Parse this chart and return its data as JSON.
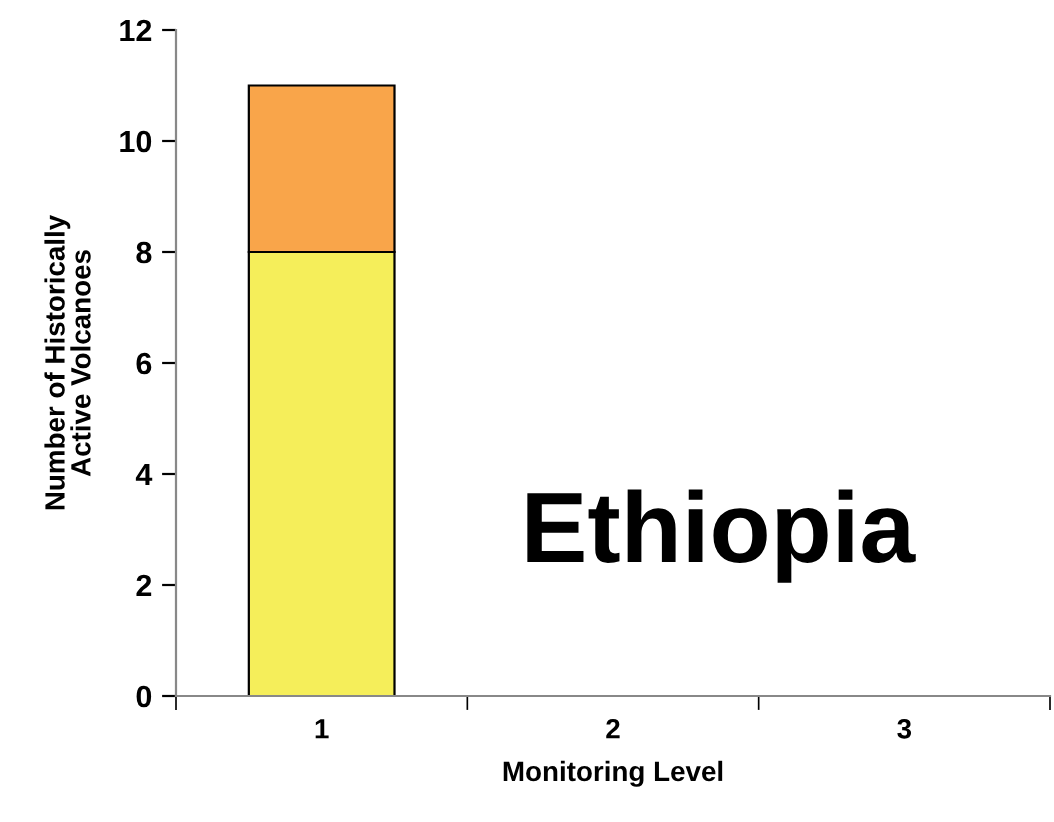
{
  "chart_data": {
    "type": "bar",
    "stacked": true,
    "xlabel": "Monitoring Level",
    "ylabel": "Number of Historically\nActive Volcanoes",
    "categories": [
      "1",
      "2",
      "3"
    ],
    "series": [
      {
        "color": "#f5ee5a",
        "values": [
          8,
          0,
          0
        ]
      },
      {
        "color": "#f9a54a",
        "values": [
          3,
          0,
          0
        ]
      }
    ],
    "ylim": [
      0,
      12
    ],
    "yticks": [
      0,
      2,
      4,
      6,
      8,
      10,
      12
    ],
    "grid": false,
    "legend": false,
    "annotations": [
      "Ethiopia"
    ]
  }
}
